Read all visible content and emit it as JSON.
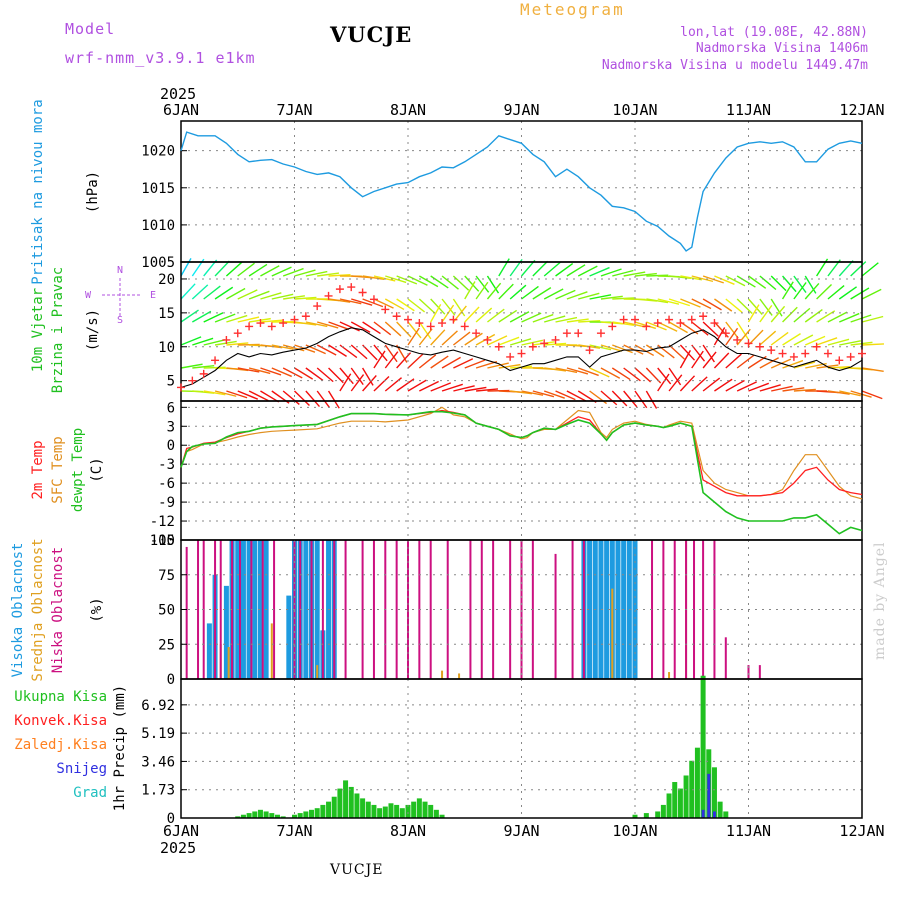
{
  "header": {
    "model_label": "Model",
    "model_name": "wrf-nmm_v3.9.1 e1km",
    "station": "VUCJE",
    "meteogram": "Meteogram",
    "lonlat": "lon,lat (19.08E, 42.88N)",
    "altitude": "Nadmorska Visina 1406m",
    "model_altitude": "Nadmorska Visina u modelu 1449.47m",
    "bottom_station": "VUCJE",
    "credit": "made by Angel"
  },
  "colors": {
    "pressure": "#1e9be0",
    "temp2m": "#ff2020",
    "sfc": "#e09020",
    "dewpt": "#20c020",
    "cloud_high": "#1e9be0",
    "cloud_mid": "#e0a020",
    "cloud_low": "#cc1080",
    "precip_total": "#20c020",
    "precip_conv": "#ff2020",
    "precip_frz": "#ff8020",
    "precip_snow": "#3030e0",
    "precip_grad": "#20c0c0",
    "wind_line": "#000000",
    "gust": "#ff3030"
  },
  "chart_data": [
    {
      "type": "line",
      "panel": "pressure",
      "year": "2025",
      "x_ticks": [
        "6JAN",
        "7JAN",
        "8JAN",
        "9JAN",
        "10JAN",
        "11JAN",
        "12JAN"
      ],
      "xlim": [
        0,
        6
      ],
      "ylabel_lines": [
        "Pritisak na nivou mora",
        "(hPa)"
      ],
      "ylim": [
        1005,
        1024
      ],
      "y_ticks": [
        1005,
        1010,
        1015,
        1020
      ],
      "x": [
        0,
        0.05,
        0.15,
        0.3,
        0.4,
        0.5,
        0.6,
        0.7,
        0.8,
        0.9,
        1.0,
        1.1,
        1.2,
        1.3,
        1.4,
        1.5,
        1.6,
        1.7,
        1.8,
        1.9,
        2.0,
        2.1,
        2.2,
        2.3,
        2.4,
        2.5,
        2.6,
        2.7,
        2.8,
        2.9,
        3.0,
        3.1,
        3.2,
        3.3,
        3.4,
        3.5,
        3.6,
        3.7,
        3.8,
        3.9,
        4.0,
        4.1,
        4.2,
        4.3,
        4.4,
        4.45,
        4.5,
        4.55,
        4.6,
        4.7,
        4.8,
        4.9,
        5.0,
        5.1,
        5.2,
        5.3,
        5.4,
        5.5,
        5.6,
        5.7,
        5.8,
        5.9,
        6.0
      ],
      "series": [
        {
          "values": [
            1020,
            1022.5,
            1022,
            1022,
            1021,
            1019.5,
            1018.5,
            1018.7,
            1018.8,
            1018.2,
            1017.8,
            1017.2,
            1016.8,
            1017.0,
            1016.5,
            1015,
            1013.8,
            1014.5,
            1015,
            1015.5,
            1015.7,
            1016.5,
            1017.0,
            1017.8,
            1017.7,
            1018.5,
            1019.5,
            1020.5,
            1022,
            1021.5,
            1021,
            1019.5,
            1018.5,
            1016.5,
            1017.5,
            1016.5,
            1015,
            1014,
            1012.5,
            1012.3,
            1011.8,
            1010.5,
            1009.8,
            1008.5,
            1007.5,
            1006.5,
            1007.0,
            1011.0,
            1014.5,
            1017,
            1019,
            1020.5,
            1021.0,
            1021.2,
            1021.0,
            1021.2,
            1020.5,
            1018.5,
            1018.5,
            1020.2,
            1021.0,
            1021.3,
            1021.0
          ]
        }
      ]
    },
    {
      "type": "line",
      "panel": "wind",
      "ylabel_lines": [
        "10m Vjetar",
        "Brzina i Pravac",
        "(m/s)"
      ],
      "compass": [
        "N",
        "S",
        "W",
        "E"
      ],
      "ylim": [
        2,
        22.5
      ],
      "y_ticks": [
        5,
        10,
        15,
        20
      ],
      "x": [
        0,
        0.1,
        0.2,
        0.3,
        0.4,
        0.5,
        0.6,
        0.7,
        0.8,
        0.9,
        1.0,
        1.1,
        1.2,
        1.3,
        1.4,
        1.5,
        1.6,
        1.7,
        1.8,
        1.9,
        2.0,
        2.1,
        2.2,
        2.3,
        2.4,
        2.5,
        2.6,
        2.7,
        2.8,
        2.9,
        3.0,
        3.1,
        3.2,
        3.3,
        3.4,
        3.5,
        3.6,
        3.7,
        3.8,
        3.9,
        4.0,
        4.1,
        4.2,
        4.3,
        4.4,
        4.5,
        4.6,
        4.7,
        4.8,
        4.9,
        5.0,
        5.1,
        5.2,
        5.3,
        5.4,
        5.5,
        5.6,
        5.7,
        5.8,
        5.9,
        6.0
      ],
      "series": [
        {
          "name": "speed",
          "values": [
            4,
            4.5,
            5.5,
            6.5,
            8,
            9,
            8.5,
            9,
            8.8,
            9.2,
            9.5,
            9.8,
            10.5,
            11.5,
            12.2,
            12.8,
            12.5,
            11.5,
            10.5,
            10,
            9.5,
            9,
            8.8,
            9.2,
            9.5,
            9,
            8.5,
            8,
            7.5,
            6.5,
            7,
            7.5,
            7.5,
            8,
            8.5,
            8.5,
            7,
            8.5,
            9,
            9.5,
            9.5,
            9.3,
            9.8,
            10,
            11,
            12,
            12.5,
            11.5,
            10,
            9,
            9,
            8.5,
            8,
            7.5,
            7,
            7.5,
            8,
            7,
            6.5,
            7,
            8
          ]
        },
        {
          "name": "gust",
          "values": [
            4,
            5,
            6,
            8,
            11,
            12,
            13,
            13.5,
            13,
            13.5,
            14,
            14.5,
            16,
            17.5,
            18.5,
            18.8,
            18,
            17,
            15.5,
            14.5,
            14,
            13.5,
            13,
            13.5,
            14,
            13,
            12,
            11,
            10,
            8.5,
            9,
            10,
            10.5,
            11,
            12,
            12,
            9.5,
            12,
            13,
            14,
            14,
            13,
            13.5,
            14,
            13.5,
            14,
            14.5,
            13.5,
            12,
            11,
            10.5,
            10,
            9.5,
            9,
            8.5,
            9,
            10,
            9,
            8,
            8.5,
            9
          ]
        }
      ],
      "arrow_direction_labels": "wind barbs coloured by speed"
    },
    {
      "type": "line",
      "panel": "temperature",
      "ylabel_lines": [
        "2m Temp",
        "SFC Temp",
        "dewpt Temp",
        "(C)"
      ],
      "ylim": [
        -15,
        7
      ],
      "y_ticks": [
        -15,
        -12,
        -9,
        -6,
        -3,
        0,
        3,
        6
      ],
      "x": [
        0,
        0.05,
        0.1,
        0.2,
        0.3,
        0.4,
        0.5,
        0.6,
        0.7,
        0.8,
        0.9,
        1.0,
        1.2,
        1.4,
        1.5,
        1.6,
        1.7,
        1.8,
        2.0,
        2.2,
        2.3,
        2.4,
        2.5,
        2.6,
        2.7,
        2.8,
        2.9,
        3.0,
        3.05,
        3.1,
        3.2,
        3.3,
        3.4,
        3.5,
        3.6,
        3.7,
        3.75,
        3.8,
        3.9,
        4.0,
        4.1,
        4.2,
        4.25,
        4.3,
        4.4,
        4.5,
        4.6,
        4.7,
        4.8,
        4.9,
        5.0,
        5.1,
        5.2,
        5.3,
        5.4,
        5.5,
        5.6,
        5.7,
        5.8,
        5.9,
        6.0
      ],
      "series": [
        {
          "name": "2m Temp",
          "values": [
            -3.5,
            -0.5,
            -0.3,
            0.3,
            0.5,
            1.2,
            1.8,
            2.2,
            2.7,
            2.9,
            3.0,
            3.1,
            3.3,
            4.5,
            5,
            5,
            5,
            4.9,
            4.8,
            5.2,
            5.5,
            5.2,
            4.8,
            3.5,
            3,
            2.5,
            1.5,
            1.2,
            1.5,
            2,
            2.7,
            2.5,
            3.5,
            4.5,
            4,
            1.8,
            0.8,
            2,
            3.2,
            3.5,
            3.2,
            3,
            2.8,
            3,
            3.5,
            3,
            -5.5,
            -6.5,
            -7.5,
            -8,
            -8,
            -8,
            -7.8,
            -7.5,
            -6,
            -4,
            -3.5,
            -5.5,
            -7,
            -7.5,
            -7.8
          ]
        },
        {
          "name": "SFC Temp",
          "values": [
            -3.5,
            -1,
            -0.7,
            0.2,
            0.4,
            0.8,
            1.3,
            1.7,
            2.0,
            2.2,
            2.3,
            2.4,
            2.6,
            3.5,
            3.8,
            3.8,
            3.8,
            3.7,
            4,
            5,
            6,
            4.8,
            4.5,
            3.5,
            3,
            2.5,
            1.8,
            1.0,
            1.2,
            2,
            2.5,
            2.5,
            4,
            5.5,
            5.2,
            2,
            1.2,
            2.5,
            3.5,
            3.8,
            3.3,
            3,
            2.8,
            3.2,
            3.8,
            3.5,
            -4,
            -6,
            -7,
            -7.5,
            -8,
            -8,
            -7.8,
            -7,
            -4,
            -1.5,
            -1.5,
            -4,
            -6.5,
            -8,
            -8.5
          ]
        },
        {
          "name": "dewpt Temp",
          "values": [
            -3.5,
            -1,
            -0.2,
            0.2,
            0.3,
            1.3,
            2.0,
            2.2,
            2.7,
            2.9,
            3.0,
            3.1,
            3.3,
            4.5,
            5,
            5,
            5,
            4.9,
            4.8,
            5.3,
            5.3,
            5.1,
            4.8,
            3.5,
            3,
            2.5,
            1.5,
            1.2,
            1.5,
            2,
            2.7,
            2.5,
            3.3,
            4,
            3.5,
            1.8,
            0.8,
            2,
            3.2,
            3.5,
            3.2,
            3,
            2.8,
            3,
            3.5,
            3,
            -7.5,
            -9,
            -10.5,
            -11.5,
            -12,
            -12,
            -12,
            -12,
            -11.5,
            -11.5,
            -11,
            -12.5,
            -14,
            -13,
            -13.5
          ]
        }
      ]
    },
    {
      "type": "bar",
      "panel": "clouds",
      "ylabel_lines": [
        "Visoka Oblacnost",
        "Srednja Oblacnost",
        "Niska Oblacnost",
        "(%)"
      ],
      "ylim": [
        0,
        100
      ],
      "y_ticks": [
        0,
        25,
        50,
        75,
        100
      ],
      "series": [
        {
          "name": "Visoka Oblacnost",
          "x": [
            0.25,
            0.3,
            0.4,
            0.45,
            0.5,
            0.55,
            0.6,
            0.65,
            0.7,
            0.75,
            0.95,
            1.0,
            1.05,
            1.1,
            1.15,
            1.2,
            1.25,
            1.3,
            1.35,
            3.55,
            3.6,
            3.65,
            3.7,
            3.75,
            3.8,
            3.85,
            3.9,
            3.95,
            4.0
          ],
          "values": [
            40,
            75,
            67,
            100,
            100,
            100,
            100,
            100,
            100,
            100,
            60,
            100,
            100,
            100,
            100,
            100,
            35,
            100,
            100,
            100,
            100,
            100,
            100,
            100,
            100,
            100,
            100,
            100,
            100
          ]
        },
        {
          "name": "Srednja Oblacnost",
          "x": [
            0.3,
            0.35,
            0.42,
            0.8,
            1.2,
            2.3,
            2.45,
            3.8,
            4.3,
            4.45
          ],
          "values": [
            20,
            25,
            23,
            40,
            10,
            6,
            4,
            65,
            5,
            100
          ]
        },
        {
          "name": "Niska Oblacnost",
          "x": [
            0.05,
            0.15,
            0.2,
            0.3,
            0.35,
            0.45,
            0.52,
            0.62,
            0.72,
            0.82,
            1.0,
            1.05,
            1.15,
            1.25,
            1.35,
            1.45,
            1.6,
            1.7,
            1.8,
            1.9,
            2.0,
            2.1,
            2.2,
            2.35,
            2.55,
            2.65,
            2.75,
            2.9,
            3.0,
            3.1,
            3.3,
            3.45,
            3.55,
            4.15,
            4.25,
            4.35,
            4.45,
            4.52,
            4.6,
            4.7,
            4.8,
            5.0,
            5.1
          ],
          "values": [
            95,
            100,
            100,
            100,
            100,
            100,
            100,
            100,
            100,
            100,
            100,
            100,
            100,
            100,
            100,
            100,
            100,
            100,
            100,
            100,
            100,
            100,
            100,
            100,
            100,
            100,
            100,
            100,
            100,
            100,
            90,
            100,
            100,
            100,
            100,
            100,
            100,
            100,
            100,
            100,
            30,
            10,
            10
          ]
        }
      ]
    },
    {
      "type": "bar",
      "panel": "precipitation",
      "ylabel_lines": [
        "1hr Precip (mm)"
      ],
      "legend": [
        "Ukupna Kisa",
        "Konvek.Kisa",
        "Zaledj.Kisa",
        "Snijeg",
        "Grad"
      ],
      "ylim": [
        0,
        8.5
      ],
      "y_ticks": [
        0,
        1.73,
        3.46,
        5.19,
        6.92
      ],
      "x": [
        0.5,
        0.55,
        0.6,
        0.65,
        0.7,
        0.75,
        0.8,
        0.85,
        0.9,
        1.0,
        1.05,
        1.1,
        1.15,
        1.2,
        1.25,
        1.3,
        1.35,
        1.4,
        1.45,
        1.5,
        1.55,
        1.6,
        1.65,
        1.7,
        1.75,
        1.8,
        1.85,
        1.9,
        1.95,
        2.0,
        2.05,
        2.1,
        2.15,
        2.2,
        2.25,
        2.3,
        4.0,
        4.1,
        4.2,
        4.25,
        4.3,
        4.35,
        4.4,
        4.45,
        4.5,
        4.55,
        4.6,
        4.65,
        4.7,
        4.75,
        4.8
      ],
      "series": [
        {
          "name": "Ukupna Kisa",
          "values": [
            0.1,
            0.2,
            0.3,
            0.4,
            0.5,
            0.4,
            0.3,
            0.2,
            0.1,
            0.2,
            0.3,
            0.4,
            0.5,
            0.6,
            0.8,
            1.0,
            1.3,
            1.8,
            2.3,
            1.9,
            1.5,
            1.2,
            1.0,
            0.8,
            0.6,
            0.7,
            0.9,
            0.8,
            0.6,
            0.8,
            1.0,
            1.2,
            1.0,
            0.8,
            0.5,
            0.2,
            0.2,
            0.3,
            0.4,
            0.8,
            1.5,
            2.2,
            1.8,
            2.6,
            3.5,
            4.3,
            8.7,
            4.2,
            3.1,
            1.0,
            0.4
          ]
        },
        {
          "name": "Snijeg",
          "values": [
            0,
            0,
            0,
            0,
            0,
            0,
            0,
            0,
            0,
            0,
            0,
            0,
            0,
            0,
            0,
            0,
            0,
            0,
            0,
            0,
            0,
            0,
            0,
            0,
            0,
            0,
            0,
            0,
            0,
            0,
            0,
            0,
            0,
            0,
            0,
            0,
            0,
            0,
            0,
            0,
            0,
            0,
            0,
            0,
            0,
            0,
            0.5,
            2.7,
            0.4,
            0,
            0
          ]
        }
      ]
    }
  ]
}
